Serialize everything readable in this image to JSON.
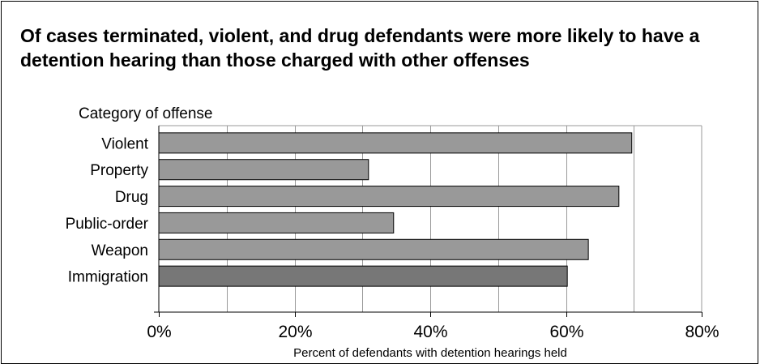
{
  "chart_data": {
    "type": "bar",
    "orientation": "horizontal",
    "title": "Of cases terminated, violent, and drug defendants were more likely to have a detention hearing than those charged with other offenses",
    "ylabel": "Category of offense",
    "xlabel": "Percent of defendants with detention hearings held",
    "categories": [
      "Violent",
      "Property",
      "Drug",
      "Public-order",
      "Weapon",
      "Immigration"
    ],
    "values": [
      69.7,
      30.9,
      67.8,
      34.6,
      63.3,
      60.2
    ],
    "unit": "%",
    "xlim": [
      0,
      80
    ],
    "xticks": [
      "0%",
      "20%",
      "40%",
      "60%",
      "80%"
    ],
    "grid": true,
    "colors": {
      "bar": "#999999",
      "highlight_bar": "#777777",
      "bar_edge": "#000000",
      "grid": "#999999"
    }
  }
}
